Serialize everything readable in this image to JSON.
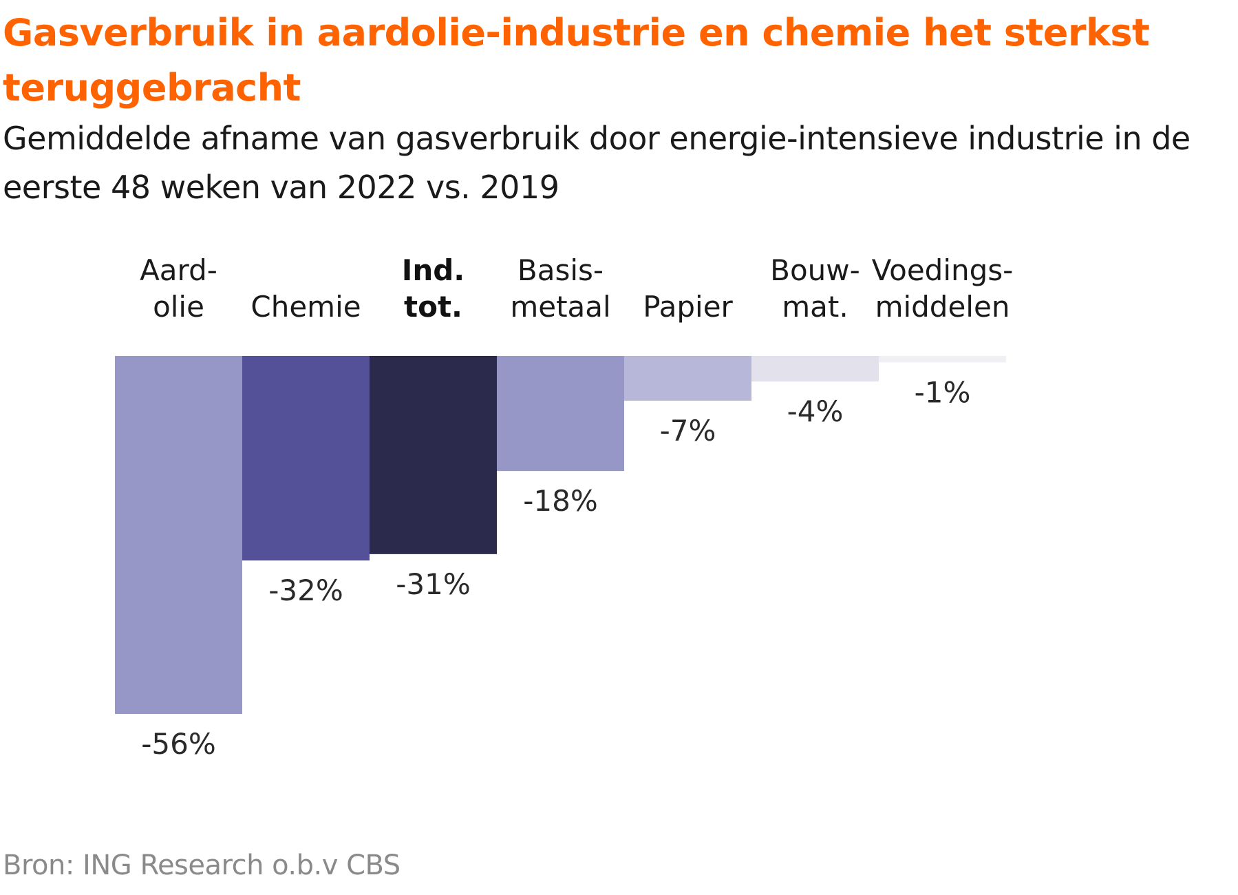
{
  "title": "Gasverbruik in aardolie-industrie en chemie het sterkst teruggebracht",
  "subtitle": "Gemiddelde afname van gasverbruik door energie-intensieve industrie in de eerste 48 weken van 2022 vs. 2019",
  "source": "Bron: ING Research o.b.v CBS",
  "chart_data": {
    "type": "bar",
    "orientation": "vertical",
    "categories": [
      [
        "Aard-",
        "olie"
      ],
      [
        "Chemie"
      ],
      [
        "Ind.",
        "tot."
      ],
      [
        "Basis-",
        "metaal"
      ],
      [
        "Papier"
      ],
      [
        "Bouw-",
        "mat."
      ],
      [
        "Voedings-",
        "middelen"
      ]
    ],
    "values": [
      -56,
      -32,
      -31,
      -18,
      -7,
      -4,
      -1
    ],
    "data_labels": [
      "-56%",
      "-32%",
      "-31%",
      "-18%",
      "-7%",
      "-4%",
      "-1%"
    ],
    "bold_categories": [
      2
    ],
    "colors": [
      "#9697c6",
      "#545198",
      "#2b2a4c",
      "#9697c6",
      "#b6b7d9",
      "#e3e2ec",
      "#f0f0f4"
    ],
    "ylim": [
      -56,
      0
    ],
    "category_labels_position": "top",
    "grid": false,
    "legend": "none"
  }
}
